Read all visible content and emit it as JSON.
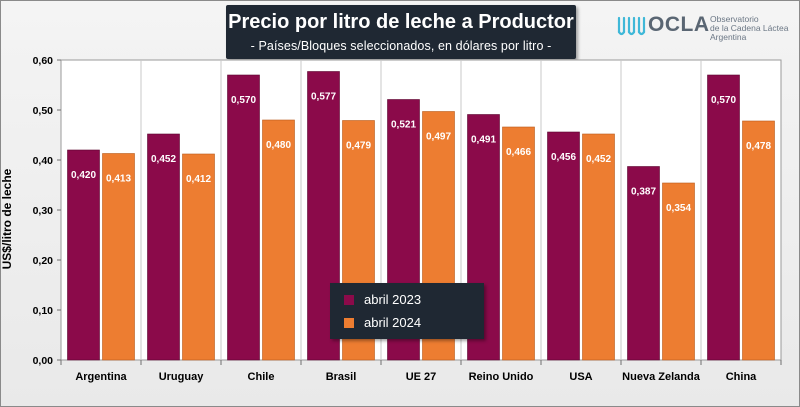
{
  "header": {
    "title": "Precio por litro de leche a Productor",
    "subtitle": "- Países/Bloques seleccionados, en dólares por litro -"
  },
  "logo": {
    "name": "OCLA",
    "line1": "Observatorio",
    "line2": "de la Cadena Láctea",
    "line3": "Argentina"
  },
  "chart_data": {
    "type": "bar",
    "title": "Precio por litro de leche a Productor",
    "subtitle": "- Países/Bloques seleccionados, en dólares por litro -",
    "xlabel": "",
    "ylabel": "US$/litro de leche",
    "ylim": [
      0,
      0.6
    ],
    "yticks": [
      "0,00",
      "0,10",
      "0,20",
      "0,30",
      "0,40",
      "0,50",
      "0,60"
    ],
    "grid": false,
    "legend_position": "center-bottom",
    "categories": [
      "Argentina",
      "Uruguay",
      "Chile",
      "Brasil",
      "UE 27",
      "Reino Unido",
      "USA",
      "Nueva Zelanda",
      "China"
    ],
    "series": [
      {
        "name": "abril 2023",
        "color": "#8b0a4a",
        "values": [
          0.42,
          0.452,
          0.57,
          0.577,
          0.521,
          0.491,
          0.456,
          0.387,
          0.57
        ],
        "labels": [
          "0,420",
          "0,452",
          "0,570",
          "0,577",
          "0,521",
          "0,491",
          "0,456",
          "0,387",
          "0,570"
        ]
      },
      {
        "name": "abril 2024",
        "color": "#ed7d31",
        "values": [
          0.413,
          0.412,
          0.48,
          0.479,
          0.497,
          0.466,
          0.452,
          0.354,
          0.478
        ],
        "labels": [
          "0,413",
          "0,412",
          "0,480",
          "0,479",
          "0,497",
          "0,466",
          "0,452",
          "0,354",
          "0,478"
        ]
      }
    ]
  }
}
